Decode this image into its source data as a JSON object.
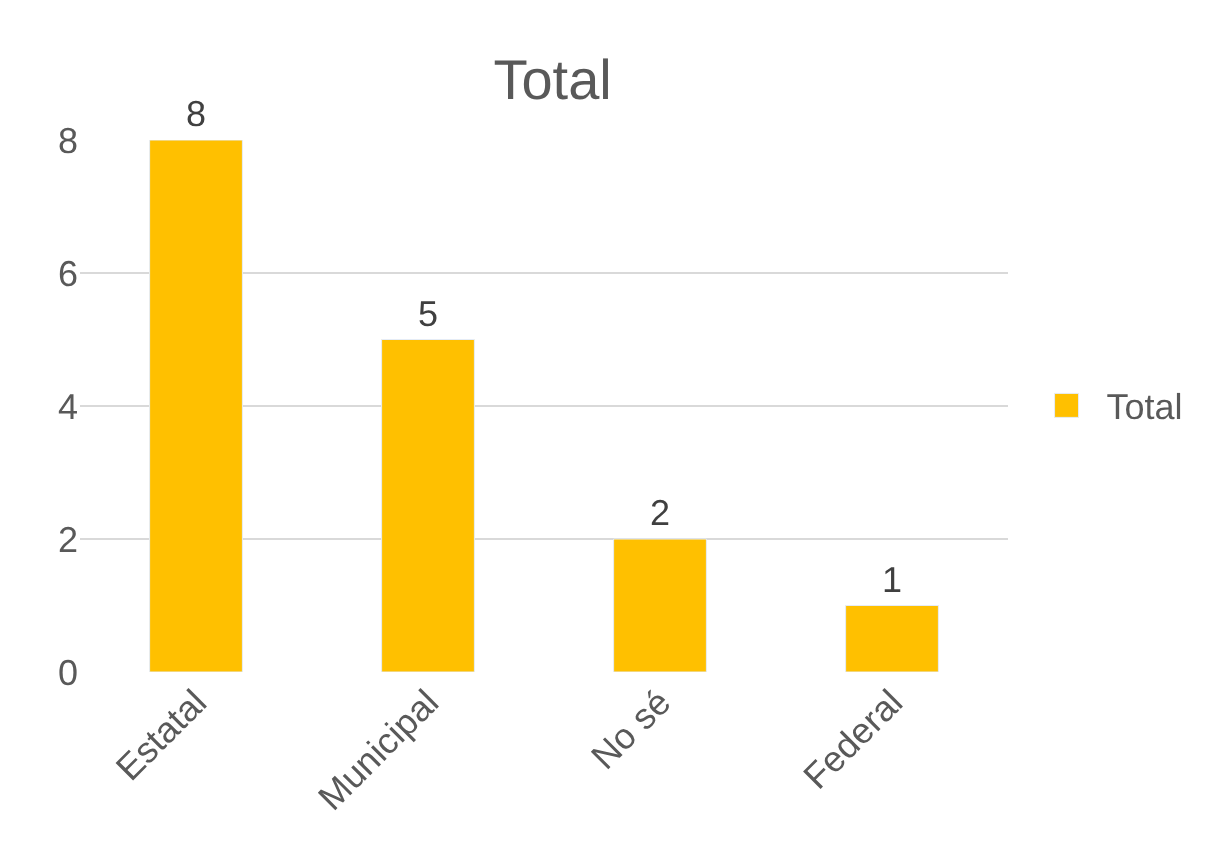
{
  "chart_data": {
    "type": "bar",
    "title": "Total",
    "categories": [
      "Estatal",
      "Municipal",
      "No sé",
      "Federal"
    ],
    "series": [
      {
        "name": "Total",
        "color": "#ffc000",
        "values": [
          8,
          5,
          2,
          1
        ]
      }
    ],
    "ylim": [
      0,
      8
    ],
    "yticks": [
      0,
      2,
      4,
      6,
      8
    ],
    "grid": "y",
    "legend": "right",
    "data_labels": true
  }
}
